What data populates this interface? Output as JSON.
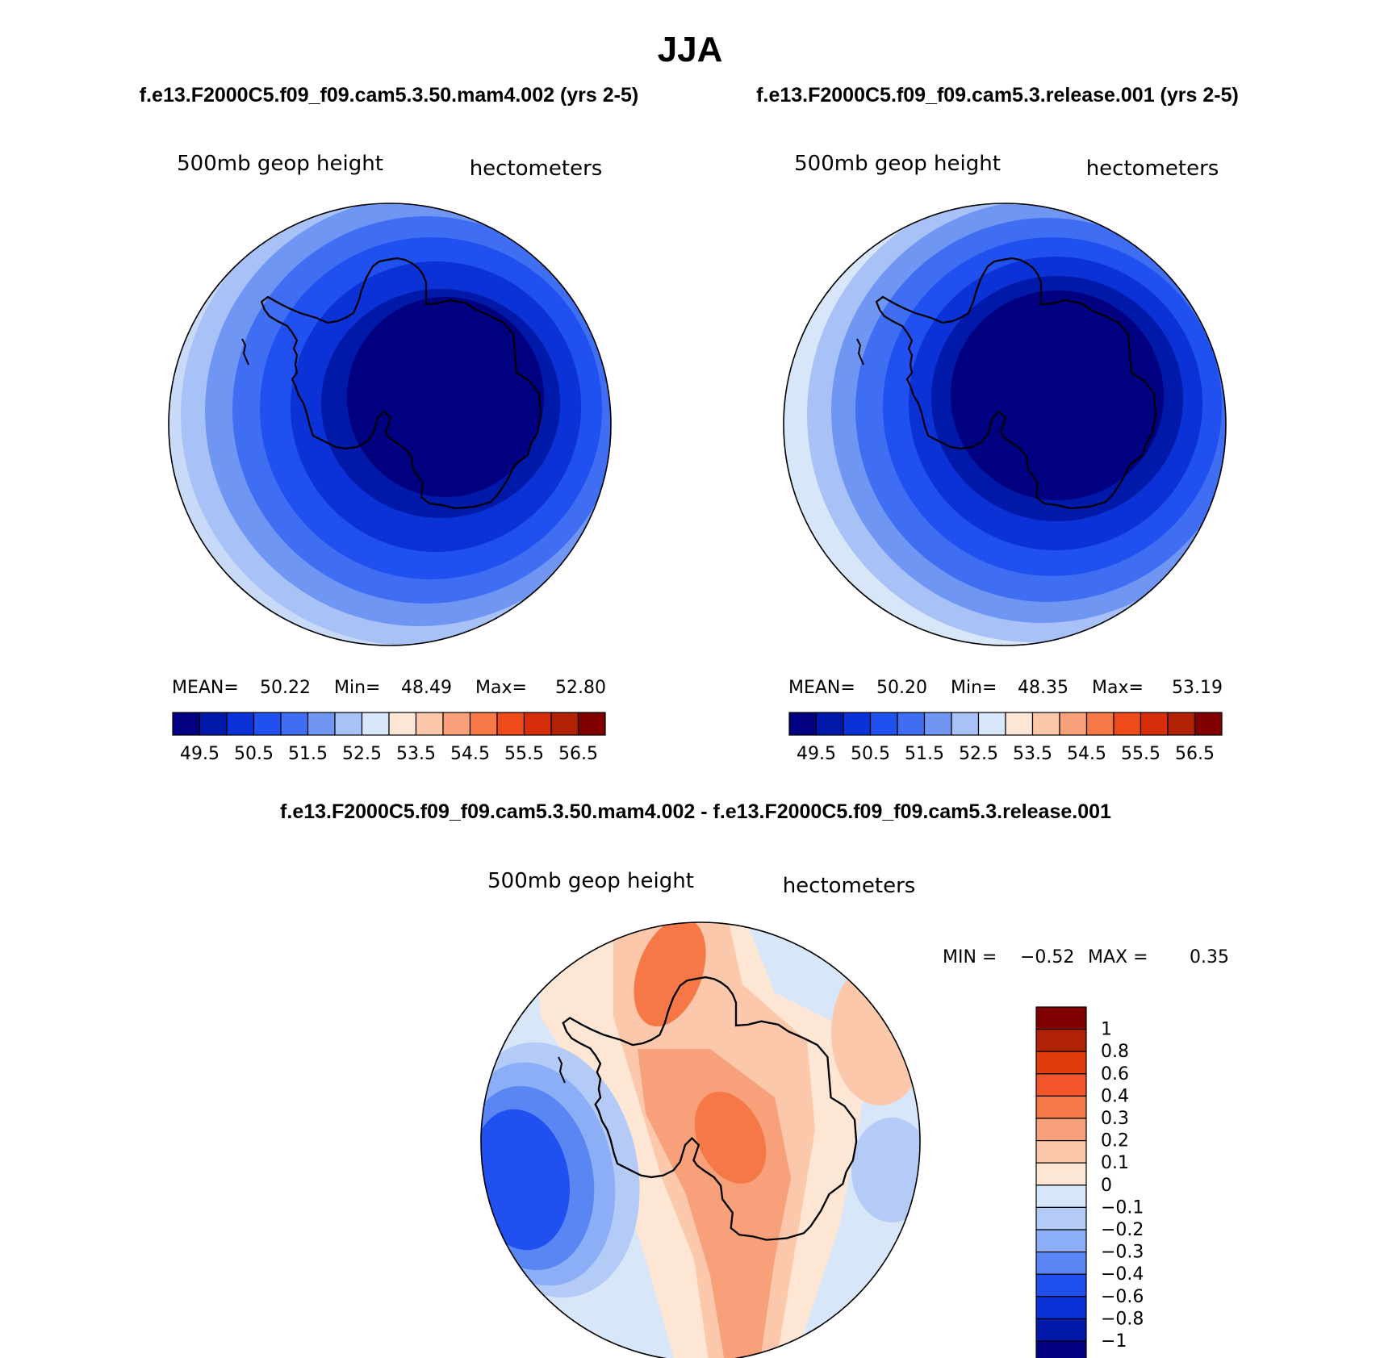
{
  "title": "JJA",
  "panels": [
    {
      "case_title": "f.e13.F2000C5.f09_f09.cam5.3.50.mam4.002 (yrs 2-5)",
      "variable": "500mb geop height",
      "units": "hectometers",
      "stats": {
        "mean_label": "MEAN=",
        "mean": "50.22",
        "min_label": "Min=",
        "min": "48.49",
        "max_label": "Max=",
        "max": "52.80"
      }
    },
    {
      "case_title": "f.e13.F2000C5.f09_f09.cam5.3.release.001 (yrs 2-5)",
      "variable": "500mb geop height",
      "units": "hectometers",
      "stats": {
        "mean_label": "MEAN=",
        "mean": "50.20",
        "min_label": "Min=",
        "min": "48.35",
        "max_label": "Max=",
        "max": "53.19"
      }
    }
  ],
  "colorbar": {
    "colors": [
      "#000080",
      "#0019a8",
      "#0a32d6",
      "#2050f0",
      "#406ef2",
      "#7096f4",
      "#a8c2f8",
      "#d8e6fa",
      "#fde6d4",
      "#fbc8ac",
      "#f8a07a",
      "#f57846",
      "#ee4a1a",
      "#d62e0a",
      "#b02206",
      "#800000"
    ],
    "labels": [
      "49.5",
      "50.5",
      "51.5",
      "52.5",
      "53.5",
      "54.5",
      "55.5",
      "56.5"
    ]
  },
  "diff": {
    "title": "f.e13.F2000C5.f09_f09.cam5.3.50.mam4.002 - f.e13.F2000C5.f09_f09.cam5.3.release.001",
    "variable": "500mb geop height",
    "units": "hectometers",
    "min_label": "MIN =",
    "min": "−0.52",
    "max_label": "MAX =",
    "max": "0.35",
    "colorbar_colors": [
      "#800000",
      "#b02206",
      "#e03c0c",
      "#f2552a",
      "#f57846",
      "#f8a07a",
      "#fbc8ac",
      "#fde6d4",
      "#d8e6fa",
      "#b4cbf8",
      "#8caef6",
      "#5a86f4",
      "#2050f0",
      "#0a32d6",
      "#0019a8",
      "#000080"
    ],
    "colorbar_labels": [
      "1",
      "0.8",
      "0.6",
      "0.4",
      "0.3",
      "0.2",
      "0.1",
      "0",
      "−0.1",
      "−0.2",
      "−0.3",
      "−0.4",
      "−0.6",
      "−0.8",
      "−1"
    ]
  },
  "field_colors": {
    "levels_a": [
      "#c8daf8",
      "#a8c2f8",
      "#7096f4",
      "#406ef2",
      "#2050f0",
      "#0a32d6",
      "#0019a8",
      "#000080"
    ],
    "levels_b": [
      "#fde6d4",
      "#d8e6fa",
      "#a8c2f8",
      "#7096f4",
      "#406ef2",
      "#2050f0",
      "#0a32d6",
      "#0019a8",
      "#000080"
    ]
  }
}
